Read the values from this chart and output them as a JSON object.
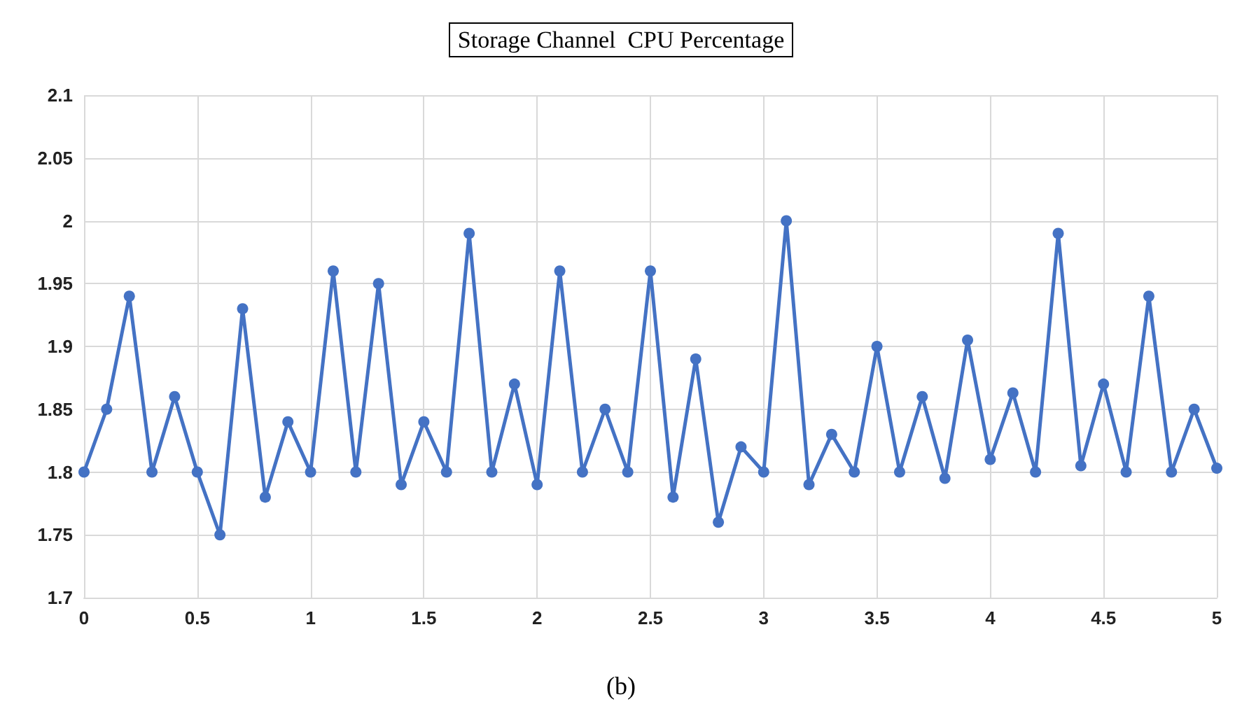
{
  "chart_data": {
    "type": "line",
    "title": "Storage Channel  CPU Percentage",
    "x": [
      0,
      0.1,
      0.2,
      0.3,
      0.4,
      0.5,
      0.6,
      0.7,
      0.8,
      0.9,
      1,
      1.1,
      1.2,
      1.3,
      1.4,
      1.5,
      1.6,
      1.7,
      1.8,
      1.9,
      2,
      2.1,
      2.2,
      2.3,
      2.4,
      2.5,
      2.6,
      2.7,
      2.8,
      2.9,
      3,
      3.1,
      3.2,
      3.3,
      3.4,
      3.5,
      3.6,
      3.7,
      3.8,
      3.9,
      4,
      4.1,
      4.2,
      4.3,
      4.4,
      4.5,
      4.6,
      4.7,
      4.8,
      4.9,
      5
    ],
    "series": [
      {
        "color": "#4472c4",
        "values": [
          1.8,
          1.85,
          1.94,
          1.8,
          1.86,
          1.8,
          1.75,
          1.93,
          1.78,
          1.84,
          1.8,
          1.96,
          1.8,
          1.95,
          1.79,
          1.84,
          1.8,
          1.99,
          1.8,
          1.87,
          1.79,
          1.96,
          1.8,
          1.85,
          1.8,
          1.96,
          1.78,
          1.89,
          1.76,
          1.82,
          1.8,
          2.0,
          1.79,
          1.83,
          1.8,
          1.9,
          1.8,
          1.86,
          1.795,
          1.905,
          1.81,
          1.863,
          1.8,
          1.99,
          1.805,
          1.87,
          1.8,
          1.94,
          1.8,
          1.85,
          1.803
        ]
      }
    ],
    "xlim": [
      0,
      5
    ],
    "xticks": [
      0,
      0.5,
      1,
      1.5,
      2,
      2.5,
      3,
      3.5,
      4,
      4.5,
      5
    ],
    "ylim": [
      1.7,
      2.1
    ],
    "yticks": [
      1.7,
      1.75,
      1.8,
      1.85,
      1.9,
      1.95,
      2,
      2.05,
      2.1
    ],
    "grid": true,
    "marker": "circle",
    "line_style": "solid",
    "annotations": [
      "(b)"
    ]
  }
}
